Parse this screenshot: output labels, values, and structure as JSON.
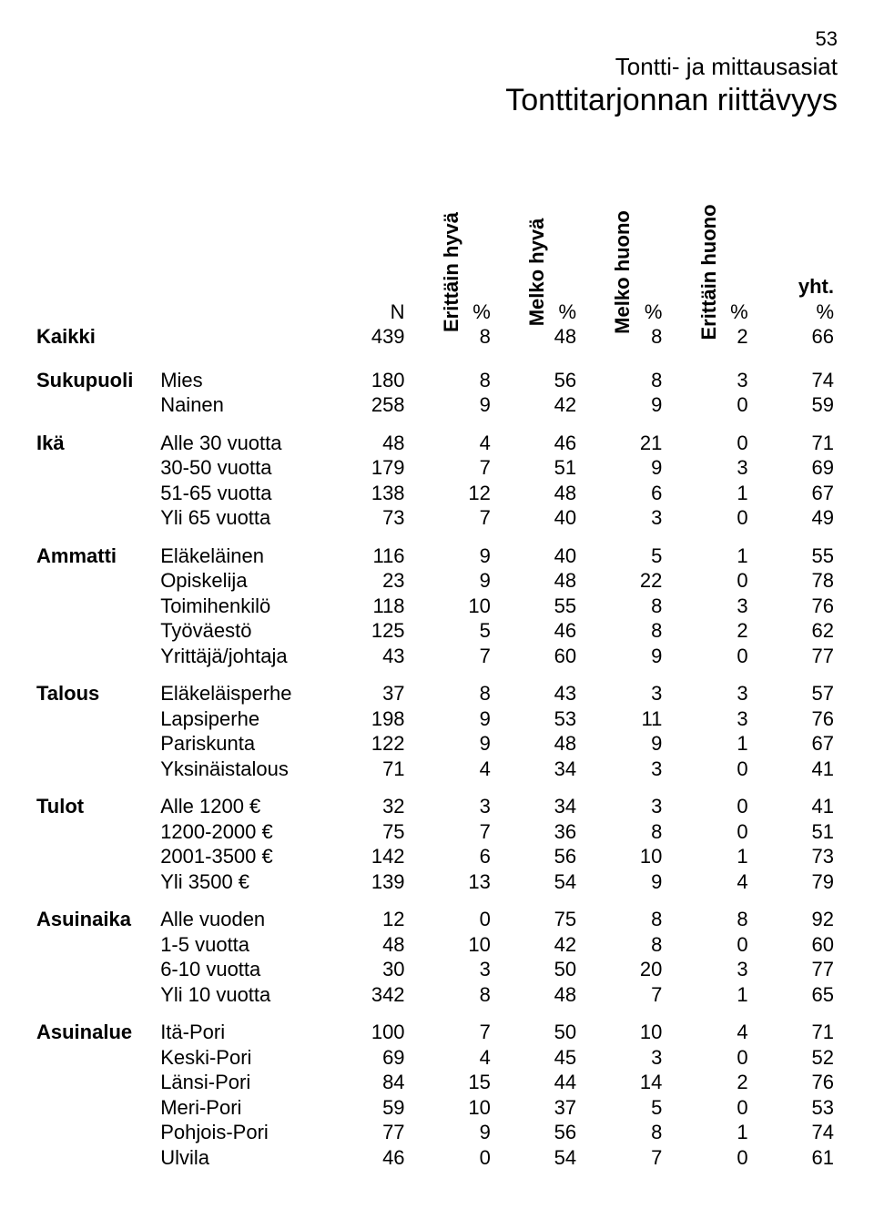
{
  "page_number": "53",
  "page_header": "Tontti- ja mittausasiat",
  "page_title": "Tonttitarjonnan riittävyys",
  "columns": {
    "rotated": [
      "Erittäin hyvä",
      "Melko hyvä",
      "Melko huono",
      "Erittäin huono"
    ],
    "yht": "yht.",
    "n_label": "N",
    "pct": "%"
  },
  "kaikki": {
    "group": "Kaikki",
    "label": "",
    "n": 439,
    "v": [
      8,
      48,
      8,
      2
    ],
    "yht": 66
  },
  "groups": [
    {
      "name": "Sukupuoli",
      "rows": [
        {
          "label": "Mies",
          "n": 180,
          "v": [
            8,
            56,
            8,
            3
          ],
          "yht": 74
        },
        {
          "label": "Nainen",
          "n": 258,
          "v": [
            9,
            42,
            9,
            0
          ],
          "yht": 59
        }
      ]
    },
    {
      "name": "Ikä",
      "rows": [
        {
          "label": "Alle 30 vuotta",
          "n": 48,
          "v": [
            4,
            46,
            21,
            0
          ],
          "yht": 71
        },
        {
          "label": "30-50 vuotta",
          "n": 179,
          "v": [
            7,
            51,
            9,
            3
          ],
          "yht": 69
        },
        {
          "label": "51-65 vuotta",
          "n": 138,
          "v": [
            12,
            48,
            6,
            1
          ],
          "yht": 67
        },
        {
          "label": "Yli 65 vuotta",
          "n": 73,
          "v": [
            7,
            40,
            3,
            0
          ],
          "yht": 49
        }
      ]
    },
    {
      "name": "Ammatti",
      "rows": [
        {
          "label": "Eläkeläinen",
          "n": 116,
          "v": [
            9,
            40,
            5,
            1
          ],
          "yht": 55
        },
        {
          "label": "Opiskelija",
          "n": 23,
          "v": [
            9,
            48,
            22,
            0
          ],
          "yht": 78
        },
        {
          "label": "Toimihenkilö",
          "n": 118,
          "v": [
            10,
            55,
            8,
            3
          ],
          "yht": 76
        },
        {
          "label": "Työväestö",
          "n": 125,
          "v": [
            5,
            46,
            8,
            2
          ],
          "yht": 62
        },
        {
          "label": "Yrittäjä/johtaja",
          "n": 43,
          "v": [
            7,
            60,
            9,
            0
          ],
          "yht": 77
        }
      ]
    },
    {
      "name": "Talous",
      "rows": [
        {
          "label": "Eläkeläisperhe",
          "n": 37,
          "v": [
            8,
            43,
            3,
            3
          ],
          "yht": 57
        },
        {
          "label": "Lapsiperhe",
          "n": 198,
          "v": [
            9,
            53,
            11,
            3
          ],
          "yht": 76
        },
        {
          "label": "Pariskunta",
          "n": 122,
          "v": [
            9,
            48,
            9,
            1
          ],
          "yht": 67
        },
        {
          "label": "Yksinäistalous",
          "n": 71,
          "v": [
            4,
            34,
            3,
            0
          ],
          "yht": 41
        }
      ]
    },
    {
      "name": "Tulot",
      "rows": [
        {
          "label": "Alle 1200 €",
          "n": 32,
          "v": [
            3,
            34,
            3,
            0
          ],
          "yht": 41
        },
        {
          "label": "1200-2000 €",
          "n": 75,
          "v": [
            7,
            36,
            8,
            0
          ],
          "yht": 51
        },
        {
          "label": "2001-3500 €",
          "n": 142,
          "v": [
            6,
            56,
            10,
            1
          ],
          "yht": 73
        },
        {
          "label": "Yli 3500 €",
          "n": 139,
          "v": [
            13,
            54,
            9,
            4
          ],
          "yht": 79
        }
      ]
    },
    {
      "name": "Asuinaika",
      "rows": [
        {
          "label": "Alle vuoden",
          "n": 12,
          "v": [
            0,
            75,
            8,
            8
          ],
          "yht": 92
        },
        {
          "label": "1-5 vuotta",
          "n": 48,
          "v": [
            10,
            42,
            8,
            0
          ],
          "yht": 60
        },
        {
          "label": "6-10 vuotta",
          "n": 30,
          "v": [
            3,
            50,
            20,
            3
          ],
          "yht": 77
        },
        {
          "label": "Yli 10 vuotta",
          "n": 342,
          "v": [
            8,
            48,
            7,
            1
          ],
          "yht": 65
        }
      ]
    },
    {
      "name": "Asuinalue",
      "rows": [
        {
          "label": "Itä-Pori",
          "n": 100,
          "v": [
            7,
            50,
            10,
            4
          ],
          "yht": 71
        },
        {
          "label": "Keski-Pori",
          "n": 69,
          "v": [
            4,
            45,
            3,
            0
          ],
          "yht": 52
        },
        {
          "label": "Länsi-Pori",
          "n": 84,
          "v": [
            15,
            44,
            14,
            2
          ],
          "yht": 76
        },
        {
          "label": "Meri-Pori",
          "n": 59,
          "v": [
            10,
            37,
            5,
            0
          ],
          "yht": 53
        },
        {
          "label": "Pohjois-Pori",
          "n": 77,
          "v": [
            9,
            56,
            8,
            1
          ],
          "yht": 74
        },
        {
          "label": "Ulvila",
          "n": 46,
          "v": [
            0,
            54,
            7,
            0
          ],
          "yht": 61
        }
      ]
    }
  ]
}
